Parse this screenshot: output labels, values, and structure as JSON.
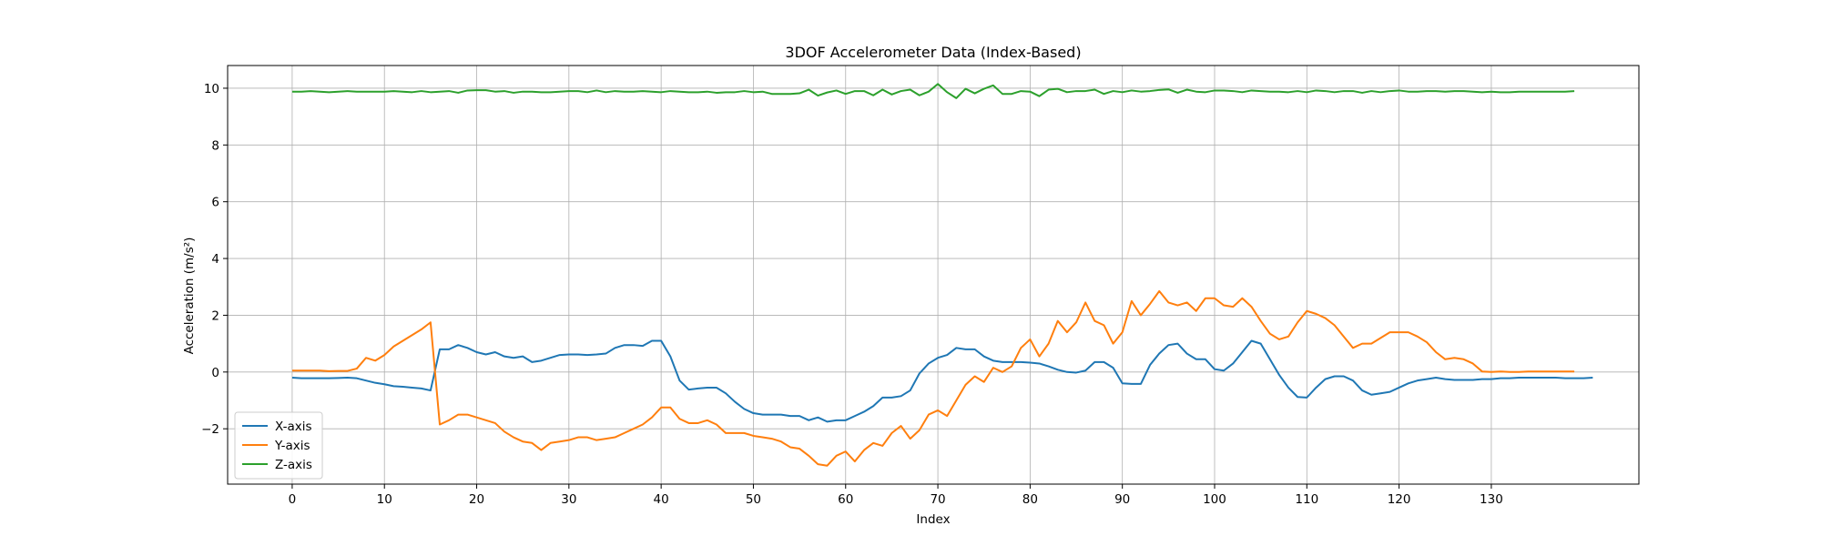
{
  "chart_data": {
    "type": "line",
    "title": "3DOF Accelerometer Data (Index-Based)",
    "xlabel": "Index",
    "ylabel": "Acceleration (m/s²)",
    "xlim": [
      -7,
      146
    ],
    "ylim": [
      -3.95,
      10.8
    ],
    "xticks": [
      0,
      10,
      20,
      30,
      40,
      50,
      60,
      70,
      80,
      90,
      100,
      110,
      120,
      130
    ],
    "yticks": [
      -2,
      0,
      2,
      4,
      6,
      8,
      10
    ],
    "grid": true,
    "legend_position": "lower-left",
    "series": [
      {
        "name": "X-axis",
        "color": "#1f77b4",
        "values": [
          -0.2,
          -0.22,
          -0.22,
          -0.22,
          -0.22,
          -0.21,
          -0.2,
          -0.22,
          -0.3,
          -0.38,
          -0.43,
          -0.5,
          -0.52,
          -0.55,
          -0.58,
          -0.65,
          0.8,
          0.8,
          0.95,
          0.85,
          0.7,
          0.62,
          0.7,
          0.55,
          0.5,
          0.55,
          0.35,
          0.4,
          0.5,
          0.6,
          0.62,
          0.62,
          0.6,
          0.62,
          0.65,
          0.85,
          0.95,
          0.95,
          0.92,
          1.1,
          1.1,
          0.55,
          -0.3,
          -0.62,
          -0.58,
          -0.55,
          -0.55,
          -0.75,
          -1.05,
          -1.3,
          -1.45,
          -1.5,
          -1.5,
          -1.5,
          -1.55,
          -1.55,
          -1.7,
          -1.6,
          -1.75,
          -1.7,
          -1.7,
          -1.55,
          -1.4,
          -1.2,
          -0.9,
          -0.9,
          -0.85,
          -0.65,
          -0.05,
          0.3,
          0.5,
          0.6,
          0.85,
          0.8,
          0.8,
          0.55,
          0.4,
          0.35,
          0.35,
          0.35,
          0.33,
          0.3,
          0.2,
          0.08,
          0.0,
          -0.02,
          0.05,
          0.35,
          0.35,
          0.15,
          -0.4,
          -0.42,
          -0.42,
          0.25,
          0.65,
          0.95,
          1.0,
          0.65,
          0.45,
          0.45,
          0.1,
          0.05,
          0.3,
          0.7,
          1.1,
          1.0,
          0.45,
          -0.1,
          -0.55,
          -0.88,
          -0.9,
          -0.55,
          -0.25,
          -0.15,
          -0.15,
          -0.3,
          -0.65,
          -0.8,
          -0.75,
          -0.7,
          -0.55,
          -0.4,
          -0.3,
          -0.25,
          -0.2,
          -0.25,
          -0.28,
          -0.28,
          -0.28,
          -0.25,
          -0.25,
          -0.22,
          -0.22,
          -0.2,
          -0.2,
          -0.2,
          -0.2,
          -0.2,
          -0.22,
          -0.22,
          -0.22,
          -0.2
        ]
      },
      {
        "name": "Y-axis",
        "color": "#ff7f0e",
        "values": [
          0.05,
          0.05,
          0.05,
          0.05,
          0.03,
          0.04,
          0.04,
          0.12,
          0.5,
          0.4,
          0.6,
          0.9,
          1.1,
          1.3,
          1.5,
          1.75,
          -1.85,
          -1.7,
          -1.5,
          -1.5,
          -1.6,
          -1.7,
          -1.8,
          -2.1,
          -2.3,
          -2.45,
          -2.5,
          -2.75,
          -2.5,
          -2.45,
          -2.4,
          -2.3,
          -2.3,
          -2.4,
          -2.35,
          -2.3,
          -2.15,
          -2.0,
          -1.85,
          -1.6,
          -1.25,
          -1.25,
          -1.65,
          -1.8,
          -1.8,
          -1.7,
          -1.85,
          -2.15,
          -2.15,
          -2.15,
          -2.25,
          -2.3,
          -2.35,
          -2.45,
          -2.65,
          -2.7,
          -2.95,
          -3.25,
          -3.3,
          -2.95,
          -2.8,
          -3.15,
          -2.75,
          -2.5,
          -2.6,
          -2.15,
          -1.9,
          -2.35,
          -2.05,
          -1.5,
          -1.35,
          -1.55,
          -1.0,
          -0.45,
          -0.15,
          -0.35,
          0.15,
          0.0,
          0.2,
          0.85,
          1.15,
          0.55,
          1.0,
          1.8,
          1.4,
          1.75,
          2.45,
          1.8,
          1.65,
          1.0,
          1.4,
          2.5,
          2.0,
          2.4,
          2.85,
          2.45,
          2.35,
          2.45,
          2.15,
          2.6,
          2.6,
          2.35,
          2.3,
          2.6,
          2.3,
          1.8,
          1.35,
          1.15,
          1.25,
          1.75,
          2.15,
          2.05,
          1.9,
          1.65,
          1.25,
          0.85,
          1.0,
          1.0,
          1.2,
          1.4,
          1.4,
          1.4,
          1.25,
          1.05,
          0.7,
          0.45,
          0.5,
          0.45,
          0.3,
          0.02,
          0.0,
          0.02,
          0.0,
          0.0,
          0.02,
          0.02,
          0.02,
          0.02,
          0.02,
          0.02
        ]
      },
      {
        "name": "Z-axis",
        "color": "#2ca02c",
        "values": [
          9.88,
          9.88,
          9.9,
          9.88,
          9.86,
          9.88,
          9.9,
          9.88,
          9.88,
          9.88,
          9.88,
          9.9,
          9.88,
          9.86,
          9.9,
          9.86,
          9.88,
          9.9,
          9.84,
          9.92,
          9.93,
          9.93,
          9.88,
          9.9,
          9.84,
          9.88,
          9.88,
          9.86,
          9.86,
          9.88,
          9.9,
          9.9,
          9.86,
          9.92,
          9.86,
          9.9,
          9.88,
          9.88,
          9.9,
          9.88,
          9.86,
          9.9,
          9.88,
          9.86,
          9.86,
          9.88,
          9.84,
          9.86,
          9.86,
          9.9,
          9.86,
          9.88,
          9.8,
          9.8,
          9.8,
          9.82,
          9.95,
          9.74,
          9.85,
          9.92,
          9.8,
          9.9,
          9.9,
          9.75,
          9.95,
          9.78,
          9.9,
          9.95,
          9.75,
          9.88,
          10.15,
          9.86,
          9.65,
          9.98,
          9.82,
          9.98,
          10.1,
          9.8,
          9.8,
          9.9,
          9.88,
          9.72,
          9.95,
          9.98,
          9.86,
          9.9,
          9.9,
          9.95,
          9.8,
          9.9,
          9.86,
          9.92,
          9.88,
          9.9,
          9.94,
          9.96,
          9.84,
          9.95,
          9.88,
          9.86,
          9.92,
          9.92,
          9.9,
          9.86,
          9.92,
          9.9,
          9.88,
          9.88,
          9.86,
          9.9,
          9.86,
          9.92,
          9.9,
          9.86,
          9.9,
          9.9,
          9.84,
          9.9,
          9.86,
          9.9,
          9.92,
          9.88,
          9.88,
          9.9,
          9.9,
          9.88,
          9.9,
          9.9,
          9.88,
          9.86,
          9.88,
          9.86,
          9.86,
          9.88,
          9.88,
          9.88,
          9.88,
          9.88,
          9.88,
          9.9
        ]
      }
    ]
  }
}
